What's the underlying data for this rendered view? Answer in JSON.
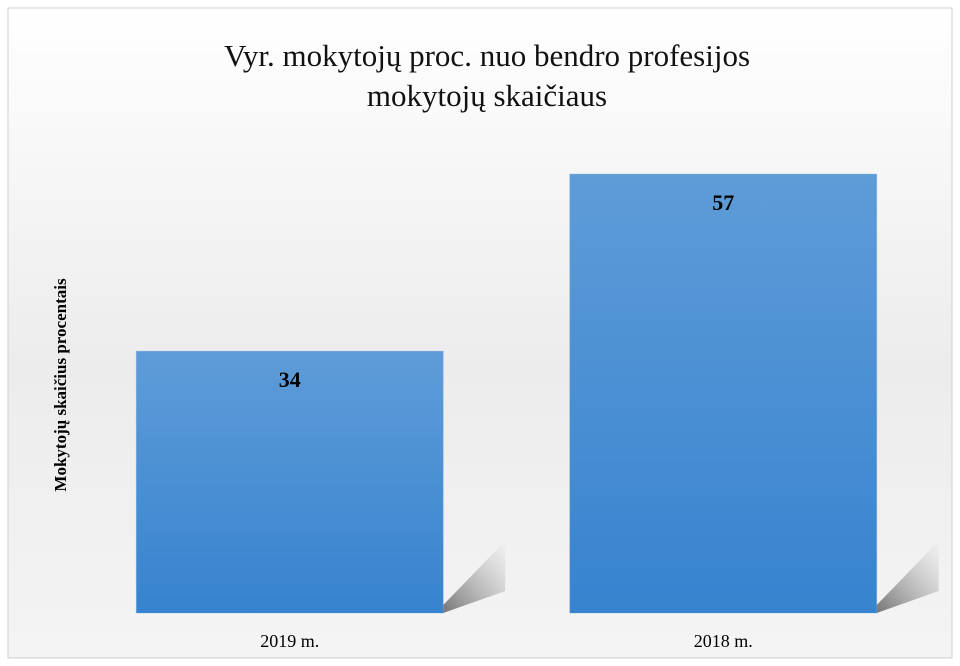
{
  "chart_data": {
    "type": "bar",
    "title": "Vyr. mokytojų proc. nuo bendro profesijos mokytojų skaičiaus",
    "ylabel": "Mokytojų skaičius procentais",
    "categories": [
      "2019 m.",
      "2018 m."
    ],
    "values": [
      34,
      57
    ],
    "color": "#5b9bd5",
    "ylim": [
      0,
      60
    ]
  }
}
